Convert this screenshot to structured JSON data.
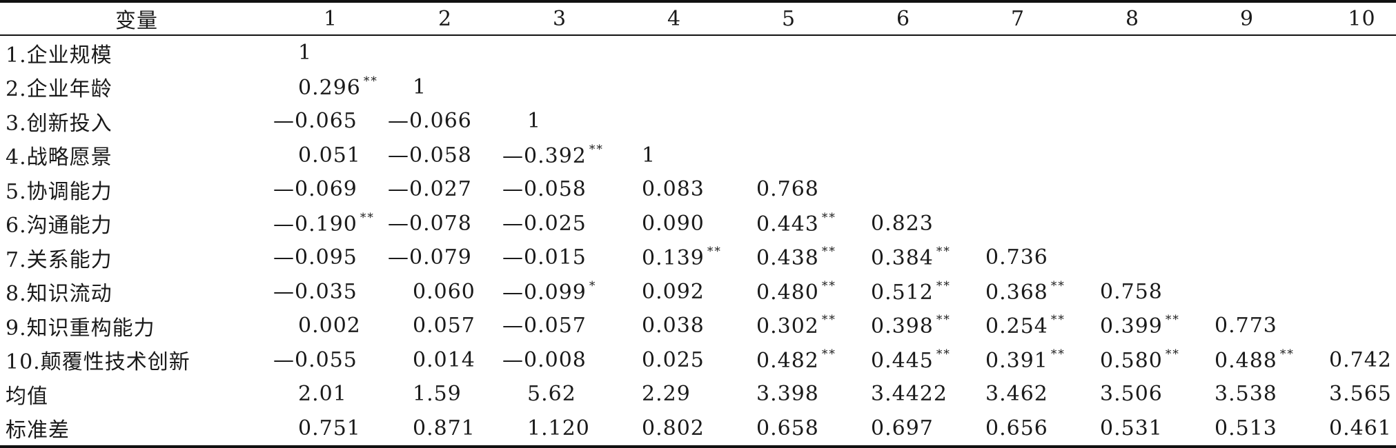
{
  "table": {
    "header": [
      "变量",
      "1",
      "2",
      "3",
      "4",
      "5",
      "6",
      "7",
      "8",
      "9",
      "10"
    ],
    "rows": [
      {
        "label": "1.企业规模",
        "cells": [
          {
            "v": "1"
          }
        ]
      },
      {
        "label": "2.企业年龄",
        "cells": [
          {
            "v": "0.296",
            "s": "**"
          },
          {
            "v": "1"
          }
        ]
      },
      {
        "label": "3.创新投入",
        "cells": [
          {
            "v": "—0.065"
          },
          {
            "v": "—0.066"
          },
          {
            "v": "1"
          }
        ]
      },
      {
        "label": "4.战略愿景",
        "cells": [
          {
            "v": "0.051"
          },
          {
            "v": "—0.058"
          },
          {
            "v": "—0.392",
            "s": "**"
          },
          {
            "v": "1"
          }
        ]
      },
      {
        "label": "5.协调能力",
        "cells": [
          {
            "v": "—0.069"
          },
          {
            "v": "—0.027"
          },
          {
            "v": "—0.058"
          },
          {
            "v": "0.083"
          },
          {
            "v": "0.768"
          }
        ]
      },
      {
        "label": "6.沟通能力",
        "cells": [
          {
            "v": "—0.190",
            "s": "**"
          },
          {
            "v": "—0.078"
          },
          {
            "v": "—0.025"
          },
          {
            "v": "0.090"
          },
          {
            "v": "0.443",
            "s": "**"
          },
          {
            "v": "0.823"
          }
        ]
      },
      {
        "label": "7.关系能力",
        "cells": [
          {
            "v": "—0.095"
          },
          {
            "v": "—0.079"
          },
          {
            "v": "—0.015"
          },
          {
            "v": "0.139",
            "s": "**"
          },
          {
            "v": "0.438",
            "s": "**"
          },
          {
            "v": "0.384",
            "s": "**"
          },
          {
            "v": "0.736"
          }
        ]
      },
      {
        "label": "8.知识流动",
        "cells": [
          {
            "v": "—0.035"
          },
          {
            "v": "0.060"
          },
          {
            "v": "—0.099",
            "s": "*"
          },
          {
            "v": "0.092"
          },
          {
            "v": "0.480",
            "s": "**"
          },
          {
            "v": "0.512",
            "s": "**"
          },
          {
            "v": "0.368",
            "s": "**"
          },
          {
            "v": "0.758"
          }
        ]
      },
      {
        "label": "9.知识重构能力",
        "cells": [
          {
            "v": "0.002"
          },
          {
            "v": "0.057"
          },
          {
            "v": "—0.057"
          },
          {
            "v": "0.038"
          },
          {
            "v": "0.302",
            "s": "**"
          },
          {
            "v": "0.398",
            "s": "**"
          },
          {
            "v": "0.254",
            "s": "**"
          },
          {
            "v": "0.399",
            "s": "**"
          },
          {
            "v": "0.773"
          }
        ]
      },
      {
        "label": "10.颠覆性技术创新",
        "cells": [
          {
            "v": "—0.055"
          },
          {
            "v": "0.014"
          },
          {
            "v": "—0.008"
          },
          {
            "v": "0.025"
          },
          {
            "v": "0.482",
            "s": "**"
          },
          {
            "v": "0.445",
            "s": "**"
          },
          {
            "v": "0.391",
            "s": "**"
          },
          {
            "v": "0.580",
            "s": "**"
          },
          {
            "v": "0.488",
            "s": "**"
          },
          {
            "v": "0.742"
          }
        ]
      },
      {
        "label": "均值",
        "cells": [
          {
            "v": "2.01"
          },
          {
            "v": "1.59"
          },
          {
            "v": "5.62"
          },
          {
            "v": "2.29"
          },
          {
            "v": "3.398"
          },
          {
            "v": "3.4422"
          },
          {
            "v": "3.462"
          },
          {
            "v": "3.506"
          },
          {
            "v": "3.538"
          },
          {
            "v": "3.565"
          }
        ]
      },
      {
        "label": "标准差",
        "cells": [
          {
            "v": "0.751"
          },
          {
            "v": "0.871"
          },
          {
            "v": "1.120"
          },
          {
            "v": "0.802"
          },
          {
            "v": "0.658"
          },
          {
            "v": "0.697"
          },
          {
            "v": "0.656"
          },
          {
            "v": "0.531"
          },
          {
            "v": "0.513"
          },
          {
            "v": "0.461"
          }
        ]
      }
    ]
  }
}
